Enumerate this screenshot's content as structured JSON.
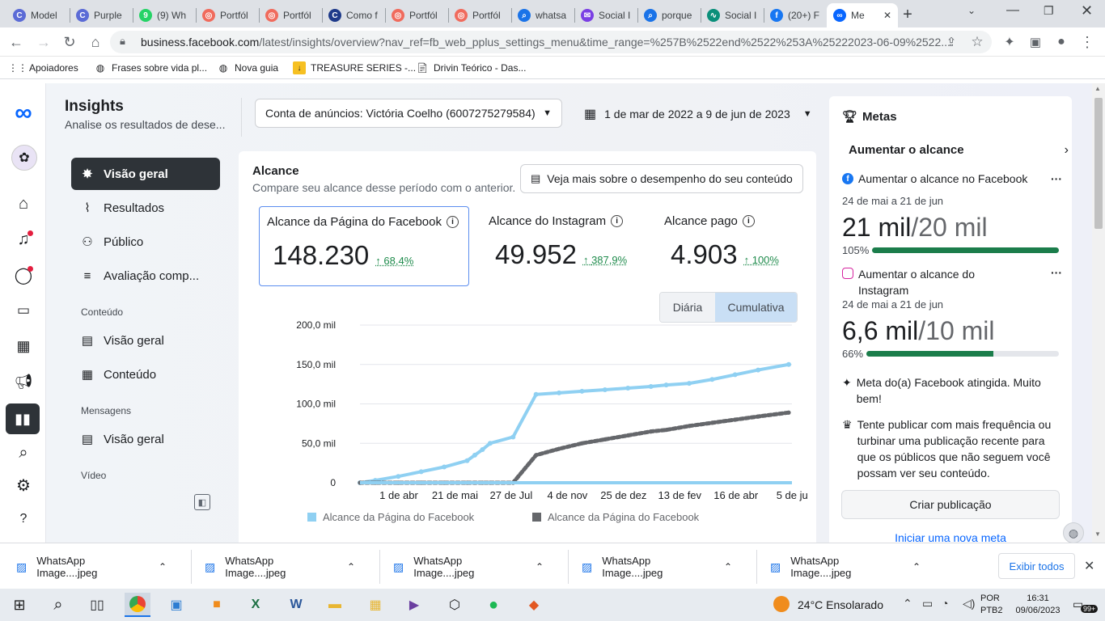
{
  "browser": {
    "tabs": [
      {
        "label": "Model",
        "color": "#5b6bd6",
        "glyph": "C"
      },
      {
        "label": "Purple",
        "color": "#5b6bd6",
        "glyph": "C"
      },
      {
        "label": "(9) Wh",
        "color": "#25d366",
        "glyph": "9"
      },
      {
        "label": "Portfól",
        "color": "#f06b5d",
        "glyph": "◎"
      },
      {
        "label": "Portfól",
        "color": "#f06b5d",
        "glyph": "◎"
      },
      {
        "label": "Como f",
        "color": "#1e3a8a",
        "glyph": "C"
      },
      {
        "label": "Portfól",
        "color": "#f06b5d",
        "glyph": "◎"
      },
      {
        "label": "Portfól",
        "color": "#f06b5d",
        "glyph": "◎"
      },
      {
        "label": "whatsa",
        "color": "#1a73e8",
        "glyph": "⌕"
      },
      {
        "label": "Social I",
        "color": "#7b3fe4",
        "glyph": "✉"
      },
      {
        "label": "porque",
        "color": "#1a73e8",
        "glyph": "⌕"
      },
      {
        "label": "Social I",
        "color": "#0a8f7a",
        "glyph": "∿"
      },
      {
        "label": "(20+) F",
        "color": "#1877f2",
        "glyph": "f"
      },
      {
        "label": "Me",
        "color": "#0866ff",
        "glyph": "∞"
      }
    ],
    "new_tab": "+",
    "url_host": "business.facebook.com",
    "url_path": "/latest/insights/overview?nav_ref=fb_web_pplus_settings_menu&time_range=%257B%2522end%2522%253A%25222023-06-09%2522...",
    "bookmarks": [
      {
        "label": "Apoiadores",
        "icon": "apps-icon"
      },
      {
        "label": "Frases sobre vida pl...",
        "icon": "globe-icon"
      },
      {
        "label": "Nova guia",
        "icon": "globe-icon"
      },
      {
        "label": "TREASURE SERIES -...",
        "icon": "download-icon"
      },
      {
        "label": "Drivin Teórico - Das...",
        "icon": "doc-icon"
      }
    ]
  },
  "header": {
    "title": "Insights",
    "subtitle": "Analise os resultados de dese...",
    "account_select": "Conta de anúncios: Victória Coelho (6007275279584)",
    "date_range": "1 de mar de 2022 a 9 de jun de 2023"
  },
  "sidenav": {
    "items": [
      {
        "label": "Visão geral",
        "icon": "overview-icon",
        "glyph": "✸"
      },
      {
        "label": "Resultados",
        "icon": "results-icon",
        "glyph": "⌇"
      },
      {
        "label": "Público",
        "icon": "audience-icon",
        "glyph": "⚇"
      }
    ],
    "benchmark": {
      "label": "Avaliação comp...",
      "icon": "benchmark-icon",
      "glyph": "≡"
    },
    "content_section": "Conteúdo",
    "content_items": [
      {
        "label": "Visão geral",
        "glyph": "▤"
      },
      {
        "label": "Conteúdo",
        "glyph": "▦"
      }
    ],
    "messages_section": "Mensagens",
    "messages_items": [
      {
        "label": "Visão geral",
        "glyph": "▤"
      }
    ],
    "video_section": "Vídeo"
  },
  "reach": {
    "title": "Alcance",
    "subtitle": "Compare seu alcance desse período com o anterior.",
    "more_button": "Veja mais sobre o desempenho do seu conteúdo",
    "metrics": [
      {
        "label": "Alcance da Página do Facebook",
        "value": "148.230",
        "change": "68,4%"
      },
      {
        "label": "Alcance do Instagram",
        "value": "49.952",
        "change": "387,9%"
      },
      {
        "label": "Alcance pago",
        "value": "4.903",
        "change": "100%"
      }
    ],
    "toggle": {
      "daily": "Diária",
      "cumulative": "Cumulativa"
    }
  },
  "chart_data": {
    "type": "line",
    "y_ticks": [
      "200,0 mil",
      "150,0 mil",
      "100,0 mil",
      "50,0 mil",
      "0"
    ],
    "ylim": [
      0,
      200000
    ],
    "x_ticks": [
      "1 de abr",
      "21 de mai",
      "27 de Jul",
      "4 de nov",
      "25 de dez",
      "13 de fev",
      "16 de abr",
      "5 de ju"
    ],
    "x": [
      0,
      20,
      50,
      80,
      110,
      140,
      150,
      160,
      170,
      200,
      230,
      260,
      290,
      320,
      350,
      380,
      400,
      430,
      460,
      490,
      520,
      560
    ],
    "series": [
      {
        "name": "Alcance da Página do Facebook",
        "color": "#8fd0f2",
        "values": [
          0,
          3000,
          8000,
          14000,
          20000,
          28000,
          35000,
          42000,
          50000,
          58000,
          112000,
          114000,
          116000,
          118000,
          120000,
          122000,
          124000,
          126000,
          131000,
          137000,
          143000,
          150000
        ]
      },
      {
        "name": "Alcance da Página do Facebook",
        "color": "#65676b",
        "values": [
          0,
          0,
          0,
          0,
          0,
          0,
          0,
          0,
          0,
          0,
          35000,
          43000,
          50000,
          55000,
          60000,
          65000,
          67000,
          72000,
          76000,
          80000,
          84000,
          89000
        ]
      }
    ]
  },
  "goals": {
    "title": "Metas",
    "section": "Aumentar o alcance",
    "goal1": {
      "label": "Aumentar o alcance no Facebook",
      "period": "24 de mai a 21 de jun",
      "current": "21 mil",
      "target": "/20 mil",
      "percent": "105%",
      "progress": 1.0
    },
    "goal2": {
      "label": "Aumentar o alcance do Instagram",
      "period": "24 de mai a 21 de jun",
      "current": "6,6 mil",
      "target": "/10 mil",
      "percent": "66%",
      "progress": 0.66
    },
    "achieved": "Meta do(a) Facebook atingida. Muito bem!",
    "tip": "Tente publicar com mais frequência ou turbinar uma publicação recente para que os públicos que não seguem você possam ver seu conteúdo.",
    "create_button": "Criar publicação",
    "new_goal_link": "Iniciar uma nova meta"
  },
  "downloads": {
    "items": [
      "WhatsApp Image....jpeg",
      "WhatsApp Image....jpeg",
      "WhatsApp Image....jpeg",
      "WhatsApp Image....jpeg",
      "WhatsApp Image....jpeg"
    ],
    "show_all": "Exibir todos"
  },
  "taskbar": {
    "weather": "24°C Ensolarado",
    "lang1": "POR",
    "lang2": "PTB2",
    "time": "16:31",
    "date": "09/06/2023",
    "notifications": "99+"
  }
}
